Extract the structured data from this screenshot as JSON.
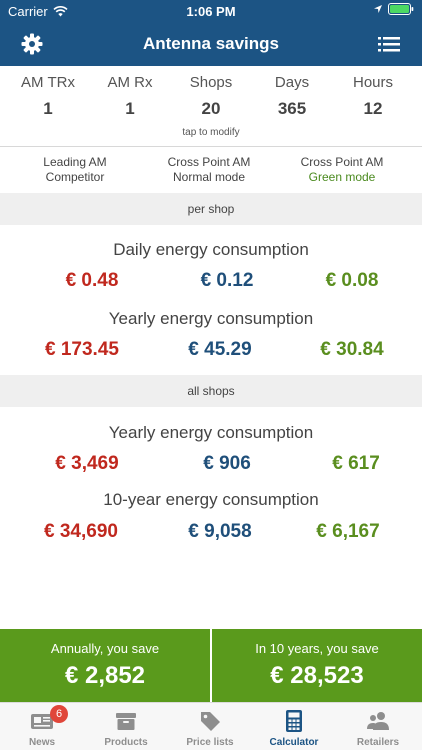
{
  "status_bar": {
    "carrier": "Carrier",
    "time": "1:06 PM"
  },
  "nav": {
    "title": "Antenna savings",
    "left_icon": "gear-icon",
    "right_icon": "list-menu-icon"
  },
  "params": [
    {
      "label": "AM TRx",
      "value": "1"
    },
    {
      "label": "AM Rx",
      "value": "1"
    },
    {
      "label": "Shops",
      "value": "20"
    },
    {
      "label": "Days",
      "value": "365"
    },
    {
      "label": "Hours",
      "value": "12"
    }
  ],
  "tap_hint": "tap to modify",
  "modes": [
    {
      "line1": "Leading AM",
      "line2": "Competitor"
    },
    {
      "line1": "Cross Point AM",
      "line2": "Normal mode"
    },
    {
      "line1": "Cross Point AM",
      "line2": "Green mode"
    }
  ],
  "per_shop": {
    "band": "per shop",
    "daily": {
      "heading": "Daily energy consumption",
      "values": [
        "€ 0.48",
        "€ 0.12",
        "€ 0.08"
      ]
    },
    "yearly": {
      "heading": "Yearly energy consumption",
      "values": [
        "€ 173.45",
        "€ 45.29",
        "€ 30.84"
      ]
    }
  },
  "all_shops": {
    "band": "all shops",
    "yearly": {
      "heading": "Yearly energy consumption",
      "values": [
        "€ 3,469",
        "€ 906",
        "€ 617"
      ]
    },
    "ten_year": {
      "heading": "10-year energy consumption",
      "values": [
        "€ 34,690",
        "€ 9,058",
        "€ 6,167"
      ]
    }
  },
  "savings": {
    "annual": {
      "label": "Annually, you save",
      "amount": "€ 2,852"
    },
    "ten_year": {
      "label": "In 10 years, you save",
      "amount": "€ 28,523"
    }
  },
  "tabs": [
    {
      "label": "News",
      "icon": "news-icon",
      "badge": "6"
    },
    {
      "label": "Products",
      "icon": "archive-box-icon"
    },
    {
      "label": "Price lists",
      "icon": "price-tag-icon"
    },
    {
      "label": "Calculator",
      "icon": "calculator-icon",
      "active": true
    },
    {
      "label": "Retailers",
      "icon": "people-icon"
    }
  ],
  "colors": {
    "primary": "#1c5484",
    "competitor": "#c0281e",
    "normal": "#1f4f7a",
    "green": "#5a8e1f",
    "save_bg": "#5a9a1c"
  }
}
